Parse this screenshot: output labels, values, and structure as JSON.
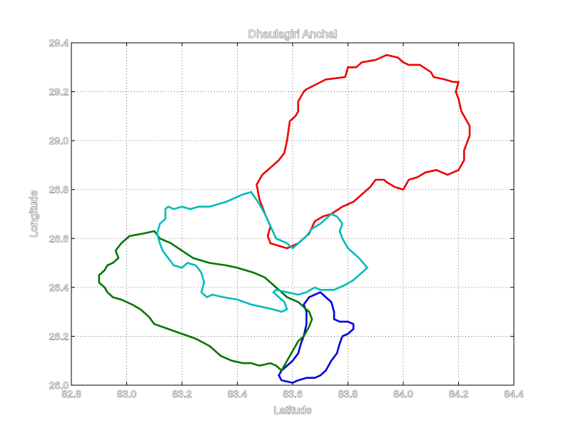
{
  "chart_data": {
    "type": "line",
    "title": "Dhaulagiri Anchal",
    "xlabel": "Latitude",
    "ylabel": "Longitude",
    "xlim": [
      82.8,
      84.4
    ],
    "ylim": [
      26.0,
      29.4
    ],
    "xticks": [
      "82.8",
      "83.0",
      "83.2",
      "83.4",
      "83.6",
      "83.8",
      "84.0",
      "84.2",
      "84.4"
    ],
    "yticks": [
      "26.0",
      "26.2",
      "26.4",
      "26.6",
      "26.8",
      "29.0",
      "29.2",
      "29.4"
    ],
    "ytick_positions": [
      0,
      1,
      2,
      3,
      4,
      5,
      6,
      7
    ],
    "grid": true,
    "series": [
      {
        "color": "#ee0000",
        "x": [
          83.47,
          83.49,
          83.52,
          83.55,
          83.57,
          83.58,
          83.59,
          83.61,
          83.62,
          83.62,
          83.64,
          83.64,
          83.65,
          83.72,
          83.79,
          83.8,
          83.83,
          83.85,
          83.9,
          83.94,
          83.98,
          84.0,
          84.02,
          84.06,
          84.1,
          84.11,
          84.15,
          84.18,
          84.2,
          84.19,
          84.2,
          84.21,
          84.24,
          84.24,
          84.22,
          84.22,
          84.2,
          84.16,
          84.12,
          84.08,
          84.05,
          84.02,
          84.0,
          83.97,
          83.94,
          83.93,
          83.9,
          83.88,
          83.85,
          83.82,
          83.78,
          83.74,
          83.71,
          83.68,
          83.66,
          83.62,
          83.58,
          83.55,
          83.52,
          83.51,
          83.52,
          83.5,
          83.48,
          83.47
        ],
        "y": [
          28.82,
          28.86,
          28.89,
          28.92,
          28.95,
          29.0,
          29.08,
          29.1,
          29.12,
          29.16,
          29.2,
          29.2,
          29.21,
          29.25,
          29.26,
          29.3,
          29.3,
          29.32,
          29.33,
          29.35,
          29.34,
          29.32,
          29.31,
          29.31,
          29.28,
          29.26,
          29.25,
          29.24,
          29.24,
          29.2,
          29.17,
          29.12,
          29.06,
          29.02,
          28.96,
          28.92,
          28.88,
          28.86,
          28.88,
          28.87,
          28.85,
          28.84,
          28.8,
          28.81,
          28.83,
          28.84,
          28.84,
          28.81,
          28.78,
          28.75,
          28.73,
          28.7,
          28.69,
          28.67,
          28.62,
          28.58,
          28.56,
          28.57,
          28.58,
          28.61,
          28.65,
          28.7,
          28.76,
          28.82
        ]
      },
      {
        "color": "#0000dd",
        "x": [
          83.7,
          83.72,
          83.74,
          83.75,
          83.75,
          83.77,
          83.8,
          83.82,
          83.82,
          83.8,
          83.78,
          83.77,
          83.76,
          83.74,
          83.72,
          83.7,
          83.68,
          83.65,
          83.62,
          83.6,
          83.56,
          83.55,
          83.56,
          83.57,
          83.58,
          83.6,
          83.62,
          83.63,
          83.64,
          83.65,
          83.65,
          83.64,
          83.66,
          83.7
        ],
        "y": [
          26.38,
          26.36,
          26.34,
          26.3,
          26.27,
          26.26,
          26.26,
          26.25,
          26.23,
          26.21,
          26.2,
          26.17,
          26.13,
          26.1,
          26.06,
          26.04,
          26.03,
          26.03,
          26.02,
          26.01,
          26.02,
          26.04,
          26.06,
          26.07,
          26.08,
          26.1,
          26.13,
          26.17,
          26.2,
          26.25,
          26.3,
          26.33,
          26.36,
          26.38
        ]
      },
      {
        "color": "#007700",
        "x": [
          83.1,
          83.06,
          83.01,
          82.98,
          82.96,
          82.97,
          82.95,
          82.93,
          82.92,
          82.9,
          82.9,
          82.92,
          82.93,
          82.95,
          82.98,
          83.02,
          83.05,
          83.08,
          83.1,
          83.15,
          83.2,
          83.25,
          83.3,
          83.34,
          83.38,
          83.42,
          83.45,
          83.48,
          83.52,
          83.54,
          83.56,
          83.58,
          83.6,
          83.62,
          83.64,
          83.66,
          83.67,
          83.66,
          83.64,
          83.62,
          83.6,
          83.58,
          83.56,
          83.54,
          83.52,
          83.5,
          83.46,
          83.4,
          83.36,
          83.3,
          83.24,
          83.2,
          83.16,
          83.12,
          83.1
        ],
        "y": [
          26.63,
          26.62,
          26.61,
          26.58,
          26.55,
          26.52,
          26.5,
          26.49,
          26.47,
          26.45,
          26.42,
          26.4,
          26.38,
          26.36,
          26.35,
          26.33,
          26.31,
          26.28,
          26.25,
          26.23,
          26.21,
          26.19,
          26.16,
          26.12,
          26.1,
          26.09,
          26.09,
          26.08,
          26.09,
          26.08,
          26.06,
          26.1,
          26.14,
          26.18,
          26.2,
          26.24,
          26.27,
          26.3,
          26.32,
          26.34,
          26.35,
          26.36,
          26.38,
          26.4,
          26.42,
          26.44,
          26.46,
          26.48,
          26.49,
          26.5,
          26.52,
          26.55,
          26.58,
          26.6,
          26.63
        ]
      },
      {
        "color": "#00bbbb",
        "x": [
          83.14,
          83.14,
          83.12,
          83.11,
          83.12,
          83.13,
          83.15,
          83.17,
          83.2,
          83.22,
          83.25,
          83.27,
          83.28,
          83.27,
          83.29,
          83.31,
          83.35,
          83.4,
          83.45,
          83.49,
          83.53,
          83.56,
          83.58,
          83.57,
          83.55,
          83.53,
          83.54,
          83.58,
          83.62,
          83.65,
          83.68,
          83.7,
          83.75,
          83.79,
          83.82,
          83.85,
          83.87,
          83.84,
          83.8,
          83.78,
          83.77,
          83.78,
          83.76,
          83.74,
          83.72,
          83.7,
          83.67,
          83.65,
          83.62,
          83.6,
          83.58,
          83.54,
          83.52,
          83.5,
          83.48,
          83.45,
          83.42,
          83.4,
          83.38,
          83.36,
          83.33,
          83.3,
          83.26,
          83.23,
          83.2,
          83.17,
          83.15,
          83.14
        ],
        "y": [
          26.72,
          26.68,
          26.66,
          26.62,
          26.58,
          26.55,
          26.52,
          26.49,
          26.48,
          26.5,
          26.49,
          26.46,
          26.42,
          26.38,
          26.36,
          26.37,
          26.36,
          26.35,
          26.33,
          26.32,
          26.31,
          26.3,
          26.31,
          26.34,
          26.36,
          26.38,
          26.39,
          26.38,
          26.37,
          26.38,
          26.4,
          26.39,
          26.39,
          26.41,
          26.43,
          26.46,
          26.48,
          26.52,
          26.56,
          26.6,
          26.63,
          26.66,
          26.69,
          26.7,
          26.68,
          26.66,
          26.64,
          26.61,
          26.58,
          26.56,
          26.58,
          26.6,
          26.65,
          26.7,
          26.74,
          26.79,
          26.78,
          26.77,
          26.76,
          26.75,
          26.74,
          26.73,
          26.73,
          26.72,
          26.73,
          26.72,
          26.73,
          26.72
        ]
      }
    ]
  }
}
